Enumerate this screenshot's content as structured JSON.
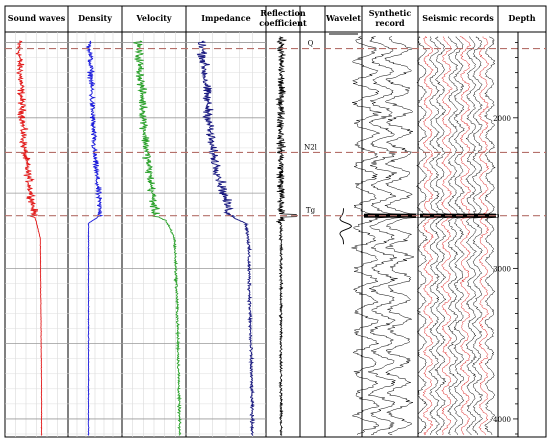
{
  "chart_data": {
    "type": "line",
    "title": "",
    "xlabel": "",
    "ylabel": "",
    "depth_axis": {
      "label": "Depth",
      "ylim": [
        1430,
        4120
      ],
      "ticks": [
        2000,
        3000,
        4000
      ]
    },
    "tracks": [
      {
        "id": "sound",
        "label": "Sound waves",
        "color": "#e21b1b",
        "kind": "log"
      },
      {
        "id": "density",
        "label": "Density",
        "color": "#1a1adb",
        "kind": "log"
      },
      {
        "id": "velocity",
        "label": "Velocity",
        "color": "#2aa12a",
        "kind": "log"
      },
      {
        "id": "impedance",
        "label": "Impedance",
        "color": "#1a1a80",
        "kind": "log"
      },
      {
        "id": "reflection",
        "label": "Reflection coefficient",
        "color": "#000000",
        "kind": "spikes"
      },
      {
        "id": "horizons",
        "label": "",
        "color": "#000000",
        "kind": "markers"
      },
      {
        "id": "wavelet",
        "label": "Wavelet",
        "color": "#000000",
        "kind": "wavelet"
      },
      {
        "id": "synthetic",
        "label": "Synthetic record",
        "color": "#000000",
        "kind": "traces"
      },
      {
        "id": "seismic",
        "label": "Seismic records",
        "color": "#000000",
        "kind": "traces_red"
      }
    ],
    "horizons": [
      {
        "name": "Q",
        "depth": 1540
      },
      {
        "name": "N2l",
        "depth": 2230
      },
      {
        "name": "Tg",
        "depth": 2650
      }
    ],
    "series": [
      {
        "track": "sound",
        "x": [
          1500,
          2200,
          2650,
          2800,
          3300,
          3800,
          4100
        ],
        "values": [
          0.22,
          0.3,
          0.47,
          0.56,
          0.57,
          0.58,
          0.58
        ]
      },
      {
        "track": "density",
        "x": [
          1500,
          2200,
          2650,
          2700,
          3500,
          4100
        ],
        "values": [
          0.4,
          0.48,
          0.6,
          0.38,
          0.38,
          0.38
        ]
      },
      {
        "track": "velocity",
        "x": [
          1500,
          2200,
          2650,
          2680,
          2800,
          3200,
          3600,
          4100
        ],
        "values": [
          0.25,
          0.38,
          0.52,
          0.68,
          0.82,
          0.86,
          0.88,
          0.9
        ]
      },
      {
        "track": "impedance",
        "x": [
          1500,
          2200,
          2650,
          2700,
          2800,
          3300,
          3800,
          4100
        ],
        "values": [
          0.2,
          0.32,
          0.55,
          0.75,
          0.78,
          0.8,
          0.82,
          0.83
        ]
      }
    ]
  }
}
